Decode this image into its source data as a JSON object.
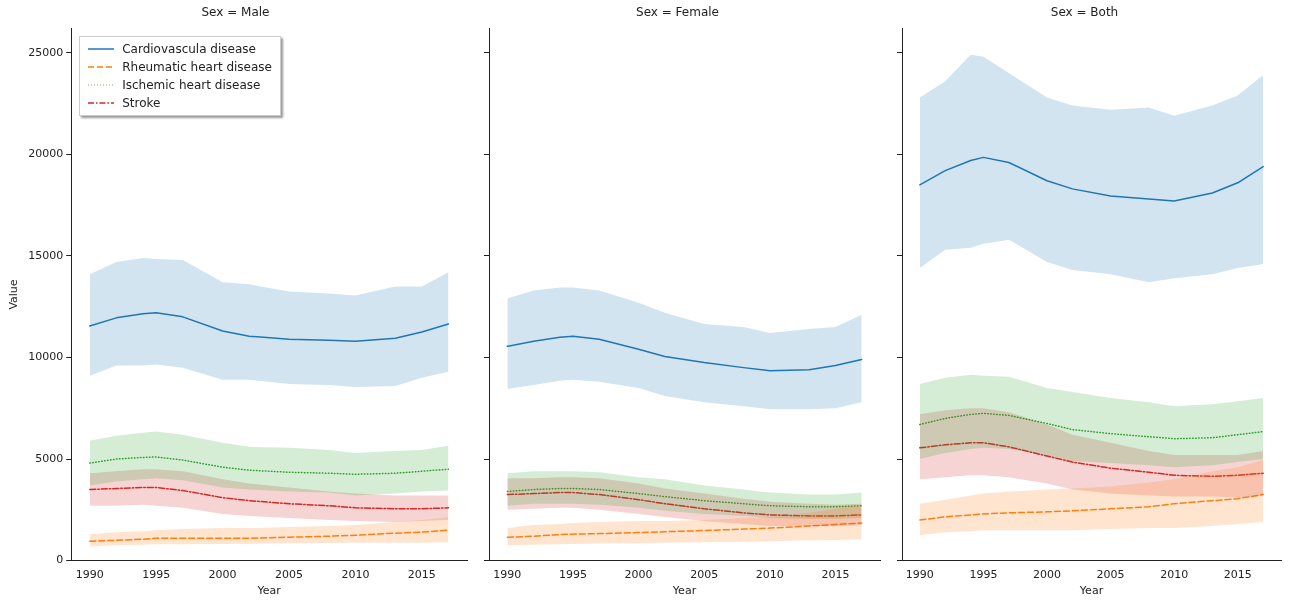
{
  "chart_data": [
    {
      "type": "line",
      "title": "Sex = Male",
      "xlabel": "Year",
      "ylabel": "Value",
      "legend": "top left",
      "x": [
        1990,
        1992,
        1994,
        1995,
        1997,
        2000,
        2002,
        2005,
        2008,
        2010,
        2013,
        2015,
        2017
      ],
      "xlim": [
        1988.6,
        2018.4
      ],
      "xticks": [
        1990,
        1995,
        2000,
        2005,
        2010,
        2015
      ],
      "ylim": [
        0,
        26200
      ],
      "yticks": [
        0,
        5000,
        10000,
        15000,
        20000,
        25000
      ],
      "series": [
        {
          "name": "Cardiovascula disease",
          "color": "#1f77b4",
          "line_style": "solid",
          "values": [
            11550,
            11950,
            12150,
            12200,
            12000,
            11300,
            11050,
            10900,
            10850,
            10800,
            10950,
            11250,
            11650
          ],
          "lower": [
            9100,
            9600,
            9600,
            9650,
            9500,
            8900,
            8900,
            8700,
            8650,
            8550,
            8600,
            9000,
            9300
          ],
          "upper": [
            14100,
            14700,
            14900,
            14850,
            14800,
            13700,
            13600,
            13250,
            13150,
            13050,
            13500,
            13500,
            14200
          ]
        },
        {
          "name": "Rheumatic heart disease",
          "color": "#ff7f0e",
          "line_style": "dashed",
          "values": [
            950,
            1000,
            1050,
            1100,
            1100,
            1100,
            1100,
            1150,
            1200,
            1250,
            1350,
            1400,
            1500
          ],
          "lower": [
            700,
            750,
            780,
            800,
            800,
            820,
            830,
            850,
            870,
            880,
            880,
            880,
            900
          ],
          "upper": [
            1300,
            1400,
            1450,
            1500,
            1550,
            1600,
            1600,
            1650,
            1700,
            1750,
            1900,
            2000,
            2150
          ]
        },
        {
          "name": "Ischemic heart disease",
          "color": "#2ca02c",
          "line_style": "dotted",
          "values": [
            4800,
            5000,
            5080,
            5100,
            4950,
            4600,
            4450,
            4350,
            4300,
            4250,
            4300,
            4400,
            4500
          ],
          "lower": [
            3700,
            3900,
            4000,
            4050,
            3950,
            3600,
            3500,
            3400,
            3350,
            3200,
            3300,
            3400,
            3450
          ],
          "upper": [
            5900,
            6150,
            6300,
            6350,
            6200,
            5800,
            5600,
            5550,
            5450,
            5300,
            5400,
            5450,
            5650
          ]
        },
        {
          "name": "Stroke",
          "color": "#d62728",
          "line_style": "dashdot",
          "values": [
            3500,
            3550,
            3600,
            3600,
            3450,
            3100,
            2950,
            2800,
            2700,
            2600,
            2550,
            2550,
            2600
          ],
          "lower": [
            2700,
            2700,
            2750,
            2700,
            2600,
            2300,
            2200,
            2100,
            2000,
            1950,
            1900,
            1950,
            2000
          ],
          "upper": [
            4300,
            4400,
            4500,
            4500,
            4400,
            4000,
            3800,
            3600,
            3400,
            3300,
            3200,
            3200,
            3200
          ]
        }
      ]
    },
    {
      "type": "line",
      "title": "Sex = Female",
      "xlabel": "Year",
      "tick_labels": "x",
      "x": [
        1990,
        1992,
        1994,
        1995,
        1997,
        2000,
        2002,
        2005,
        2008,
        2010,
        2013,
        2015,
        2017
      ],
      "xlim": [
        1988.6,
        2018.4
      ],
      "xticks": [
        1990,
        1995,
        2000,
        2005,
        2010,
        2015
      ],
      "ylim": [
        0,
        26200
      ],
      "yticks": [
        0,
        5000,
        10000,
        15000,
        20000,
        25000
      ],
      "series": [
        {
          "color": "#1f77b4",
          "line_style": "solid",
          "values": [
            10550,
            10800,
            11000,
            11050,
            10900,
            10400,
            10050,
            9750,
            9500,
            9350,
            9400,
            9600,
            9900
          ],
          "lower": [
            8450,
            8650,
            8850,
            8900,
            8800,
            8500,
            8100,
            7800,
            7600,
            7450,
            7450,
            7500,
            7800
          ],
          "upper": [
            12900,
            13300,
            13450,
            13450,
            13300,
            12700,
            12200,
            11650,
            11500,
            11200,
            11400,
            11500,
            12100
          ]
        },
        {
          "color": "#ff7f0e",
          "line_style": "dashed",
          "values": [
            1150,
            1200,
            1280,
            1300,
            1330,
            1380,
            1420,
            1480,
            1550,
            1600,
            1700,
            1780,
            1850
          ],
          "lower": [
            750,
            780,
            800,
            820,
            840,
            860,
            880,
            900,
            930,
            950,
            1000,
            1020,
            1050
          ],
          "upper": [
            1600,
            1750,
            1800,
            1850,
            1900,
            1950,
            1950,
            2000,
            2100,
            2150,
            2350,
            2550,
            2750
          ]
        },
        {
          "color": "#2ca02c",
          "line_style": "dotted",
          "values": [
            3400,
            3500,
            3550,
            3550,
            3500,
            3300,
            3150,
            2950,
            2800,
            2700,
            2650,
            2650,
            2700
          ],
          "lower": [
            2700,
            2800,
            2800,
            2800,
            2750,
            2600,
            2450,
            2300,
            2200,
            2100,
            2050,
            2050,
            2100
          ],
          "upper": [
            4300,
            4400,
            4400,
            4400,
            4350,
            4100,
            4000,
            3700,
            3500,
            3350,
            3250,
            3250,
            3350
          ]
        },
        {
          "color": "#d62728",
          "line_style": "dashdot",
          "values": [
            3250,
            3300,
            3350,
            3350,
            3250,
            3000,
            2800,
            2550,
            2350,
            2250,
            2200,
            2200,
            2250
          ],
          "lower": [
            2500,
            2550,
            2600,
            2600,
            2500,
            2300,
            2150,
            1950,
            1800,
            1700,
            1700,
            1700,
            1750
          ],
          "upper": [
            4050,
            4050,
            4100,
            4100,
            4050,
            3800,
            3550,
            3300,
            3050,
            2900,
            2800,
            2750,
            2800
          ]
        }
      ]
    },
    {
      "type": "line",
      "title": "Sex = Both",
      "xlabel": "Year",
      "tick_labels": "x",
      "x": [
        1990,
        1992,
        1994,
        1995,
        1997,
        2000,
        2002,
        2005,
        2008,
        2010,
        2013,
        2015,
        2017
      ],
      "xlim": [
        1988.6,
        2018.4
      ],
      "xticks": [
        1990,
        1995,
        2000,
        2005,
        2010,
        2015
      ],
      "ylim": [
        0,
        26200
      ],
      "yticks": [
        0,
        5000,
        10000,
        15000,
        20000,
        25000
      ],
      "series": [
        {
          "color": "#1f77b4",
          "line_style": "solid",
          "values": [
            18500,
            19200,
            19700,
            19850,
            19600,
            18700,
            18300,
            17950,
            17800,
            17700,
            18100,
            18600,
            19400
          ],
          "lower": [
            14400,
            15300,
            15400,
            15600,
            15800,
            14700,
            14300,
            14100,
            13700,
            13900,
            14100,
            14400,
            14600
          ],
          "upper": [
            22800,
            23600,
            24900,
            24800,
            24000,
            22800,
            22400,
            22200,
            22300,
            21900,
            22400,
            22900,
            23900
          ]
        },
        {
          "color": "#ff7f0e",
          "line_style": "dashed",
          "values": [
            2000,
            2150,
            2250,
            2300,
            2350,
            2400,
            2450,
            2550,
            2650,
            2800,
            2950,
            3050,
            3250
          ],
          "lower": [
            1250,
            1400,
            1450,
            1500,
            1500,
            1500,
            1500,
            1550,
            1600,
            1600,
            1700,
            1800,
            1900
          ],
          "upper": [
            2800,
            3000,
            3200,
            3300,
            3400,
            3500,
            3550,
            3650,
            3850,
            4000,
            4400,
            4600,
            4950
          ]
        },
        {
          "color": "#2ca02c",
          "line_style": "dotted",
          "values": [
            6700,
            7000,
            7200,
            7250,
            7150,
            6750,
            6450,
            6250,
            6100,
            6000,
            6050,
            6200,
            6350
          ],
          "lower": [
            5000,
            5300,
            5500,
            5550,
            5500,
            5200,
            4900,
            4800,
            4700,
            4600,
            4700,
            4850,
            5000
          ],
          "upper": [
            8700,
            9000,
            9150,
            9100,
            9050,
            8500,
            8300,
            8000,
            7800,
            7600,
            7700,
            7850,
            8000
          ]
        },
        {
          "color": "#d62728",
          "line_style": "dashdot",
          "values": [
            5550,
            5700,
            5800,
            5800,
            5600,
            5150,
            4850,
            4550,
            4350,
            4200,
            4150,
            4200,
            4300
          ],
          "lower": [
            4000,
            4100,
            4200,
            4200,
            4100,
            3800,
            3500,
            3300,
            3200,
            3150,
            3150,
            3100,
            3200
          ],
          "upper": [
            7200,
            7400,
            7500,
            7500,
            7300,
            6700,
            6200,
            5800,
            5400,
            5200,
            5200,
            5200,
            5400
          ]
        }
      ]
    }
  ]
}
